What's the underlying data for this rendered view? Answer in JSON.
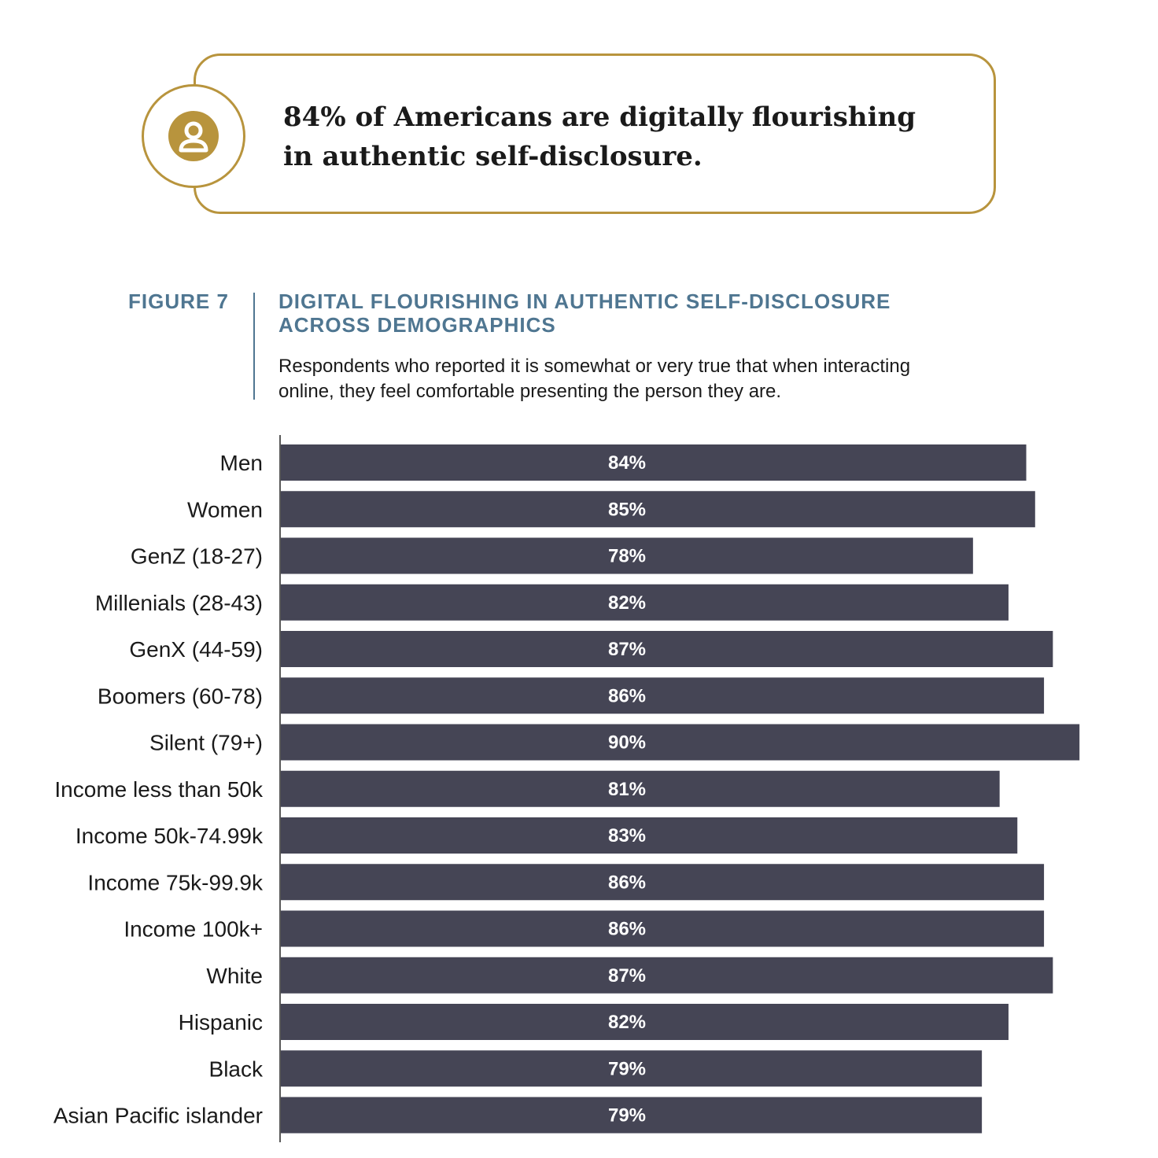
{
  "callout": {
    "line1": "84% of Americans are digitally flourishing",
    "line2": "in authentic self-disclosure.",
    "icon": "user-icon",
    "accent_color": "#b8943d"
  },
  "figure": {
    "label": "FIGURE 7",
    "title_line1": "DIGITAL FLOURISHING IN AUTHENTIC SELF-DISCLOSURE",
    "title_line2": "ACROSS DEMOGRAPHICS",
    "subtitle_line1": "Respondents who reported it is somewhat or very true that when interacting",
    "subtitle_line2": "online, they feel comfortable presenting the person they are.",
    "heading_color": "#4f7691"
  },
  "chart_data": {
    "type": "bar",
    "orientation": "horizontal",
    "categories": [
      "Men",
      "Women",
      "GenZ (18-27)",
      "Millenials (28-43)",
      "GenX (44-59)",
      "Boomers (60-78)",
      "Silent (79+)",
      "Income less than 50k",
      "Income 50k-74.99k",
      "Income  75k-99.9k",
      "Income 100k+",
      "White",
      "Hispanic",
      "Black",
      "Asian Pacific islander"
    ],
    "values": [
      84,
      85,
      78,
      82,
      87,
      86,
      90,
      81,
      83,
      86,
      86,
      87,
      82,
      79,
      79
    ],
    "value_labels": [
      "84%",
      "85%",
      "78%",
      "82%",
      "87%",
      "86%",
      "90%",
      "81%",
      "83%",
      "86%",
      "86%",
      "87%",
      "82%",
      "79%",
      "79%"
    ],
    "unit": "%",
    "bar_color": "#454555",
    "label_color": "#ffffff",
    "grid": false,
    "legend": "none"
  }
}
